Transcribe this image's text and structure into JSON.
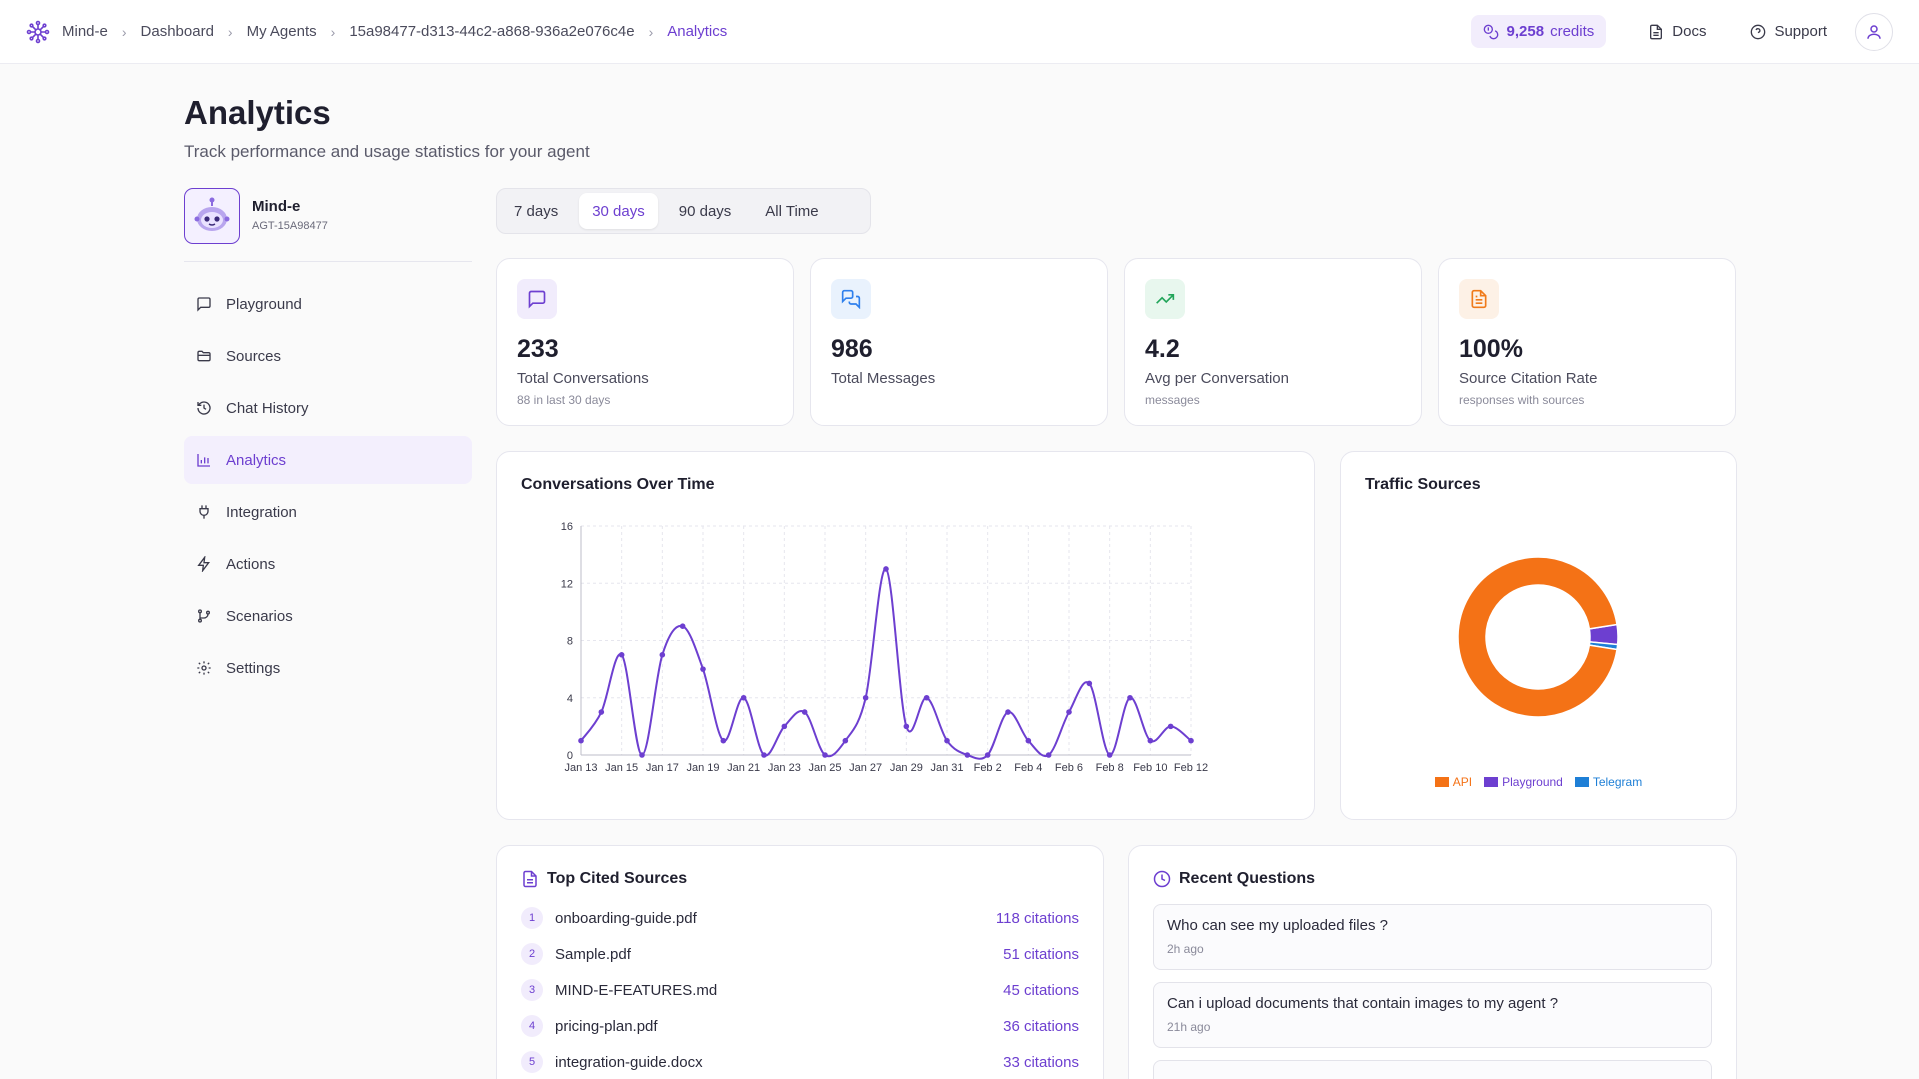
{
  "breadcrumb": [
    "Mind-e",
    "Dashboard",
    "My Agents",
    "15a98477-d313-44c2-a868-936a2e076c4e",
    "Analytics"
  ],
  "header": {
    "credits_value": "9,258",
    "credits_label": "credits",
    "docs": "Docs",
    "support": "Support"
  },
  "page": {
    "title": "Analytics",
    "subtitle": "Track performance and usage statistics for your agent"
  },
  "agent": {
    "name": "Mind-e",
    "id": "AGT-15A98477"
  },
  "sidebar": {
    "items": [
      {
        "label": "Playground",
        "icon": "chat-icon"
      },
      {
        "label": "Sources",
        "icon": "folder-icon"
      },
      {
        "label": "Chat History",
        "icon": "history-icon"
      },
      {
        "label": "Analytics",
        "icon": "bar-chart-icon",
        "active": true
      },
      {
        "label": "Integration",
        "icon": "plug-icon"
      },
      {
        "label": "Actions",
        "icon": "bolt-icon"
      },
      {
        "label": "Scenarios",
        "icon": "branch-icon"
      },
      {
        "label": "Settings",
        "icon": "gear-icon"
      }
    ]
  },
  "range_tabs": [
    "7 days",
    "30 days",
    "90 days",
    "All Time"
  ],
  "range_selected": "30 days",
  "stats": [
    {
      "value": "233",
      "label": "Total Conversations",
      "sub": "88 in last 30 days",
      "icon": "message-square-icon",
      "color": "#6d3fd0"
    },
    {
      "value": "986",
      "label": "Total Messages",
      "sub": "",
      "icon": "messages-icon",
      "color": "#2f80ed"
    },
    {
      "value": "4.2",
      "label": "Avg per Conversation",
      "sub": "messages",
      "icon": "trending-up-icon",
      "color": "#22a55a"
    },
    {
      "value": "100%",
      "label": "Source Citation Rate",
      "sub": "responses with sources",
      "icon": "file-text-icon",
      "color": "#f07a1a"
    }
  ],
  "line_chart": {
    "title": "Conversations Over Time"
  },
  "pie_chart": {
    "title": "Traffic Sources"
  },
  "chart_data": [
    {
      "type": "line",
      "title": "Conversations Over Time",
      "ylim": [
        0,
        16
      ],
      "yticks": [
        0,
        4,
        8,
        12,
        16
      ],
      "x_tick_labels": [
        "Jan 13",
        "Jan 15",
        "Jan 17",
        "Jan 19",
        "Jan 21",
        "Jan 23",
        "Jan 25",
        "Jan 27",
        "Jan 29",
        "Jan 31",
        "Feb 2",
        "Feb 4",
        "Feb 6",
        "Feb 8",
        "Feb 10",
        "Feb 12"
      ],
      "x": [
        "Jan 13",
        "Jan 14",
        "Jan 15",
        "Jan 16",
        "Jan 17",
        "Jan 18",
        "Jan 19",
        "Jan 20",
        "Jan 21",
        "Jan 22",
        "Jan 23",
        "Jan 24",
        "Jan 25",
        "Jan 26",
        "Jan 27",
        "Jan 28",
        "Jan 29",
        "Jan 30",
        "Jan 31",
        "Feb 1",
        "Feb 2",
        "Feb 3",
        "Feb 4",
        "Feb 5",
        "Feb 6",
        "Feb 7",
        "Feb 8",
        "Feb 9",
        "Feb 10",
        "Feb 11",
        "Feb 12"
      ],
      "series": [
        {
          "values": [
            1,
            3,
            7,
            0,
            7,
            9,
            6,
            1,
            4,
            0,
            2,
            3,
            0,
            1,
            4,
            13,
            2,
            4,
            1,
            0,
            0,
            3,
            1,
            0,
            3,
            5,
            0,
            4,
            1,
            2,
            1
          ],
          "color": "#6d3fd0"
        }
      ],
      "grid": true
    },
    {
      "type": "pie",
      "title": "Traffic Sources",
      "labels": [
        "API",
        "Playground",
        "Telegram"
      ],
      "values": [
        95,
        4,
        1
      ],
      "colors": [
        "#f47216",
        "#6d3fd0",
        "#1e7fd6"
      ],
      "legend": "bottom"
    }
  ],
  "top_sources": {
    "title": "Top Cited Sources",
    "items": [
      {
        "rank": "1",
        "name": "onboarding-guide.pdf",
        "citations": "118 citations"
      },
      {
        "rank": "2",
        "name": "Sample.pdf",
        "citations": "51 citations"
      },
      {
        "rank": "3",
        "name": "MIND-E-FEATURES.md",
        "citations": "45 citations"
      },
      {
        "rank": "4",
        "name": "pricing-plan.pdf",
        "citations": "36 citations"
      },
      {
        "rank": "5",
        "name": "integration-guide.docx",
        "citations": "33 citations"
      }
    ]
  },
  "recent_questions": {
    "title": "Recent Questions",
    "items": [
      {
        "text": "Who can see my uploaded files ?",
        "time": "2h ago"
      },
      {
        "text": "Can i upload documents that contain images to my agent ?",
        "time": "21h ago"
      },
      {
        "text": "",
        "time": ""
      }
    ]
  }
}
